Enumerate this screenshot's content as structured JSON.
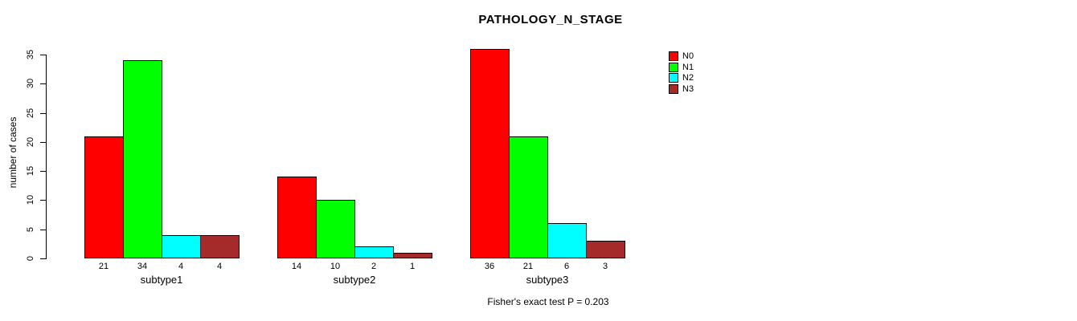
{
  "chart_data": {
    "type": "bar",
    "title": "PATHOLOGY_N_STAGE",
    "xlabel": "",
    "ylabel": "number of cases",
    "categories": [
      "subtype1",
      "subtype2",
      "subtype3"
    ],
    "series": [
      {
        "name": "N0",
        "color": "#ff0000",
        "values": [
          21,
          14,
          36
        ]
      },
      {
        "name": "N1",
        "color": "#00ff00",
        "values": [
          34,
          10,
          21
        ]
      },
      {
        "name": "N2",
        "color": "#00ffff",
        "values": [
          4,
          2,
          6
        ]
      },
      {
        "name": "N3",
        "color": "#a52a2a",
        "values": [
          4,
          1,
          3
        ]
      }
    ],
    "bar_value_labels": true,
    "yticks": [
      0,
      5,
      10,
      15,
      20,
      25,
      30,
      35
    ],
    "ylim": [
      0,
      35
    ],
    "grid": false,
    "legend_position": "top-right",
    "annotation": "Fisher's exact test P = 0.203"
  }
}
